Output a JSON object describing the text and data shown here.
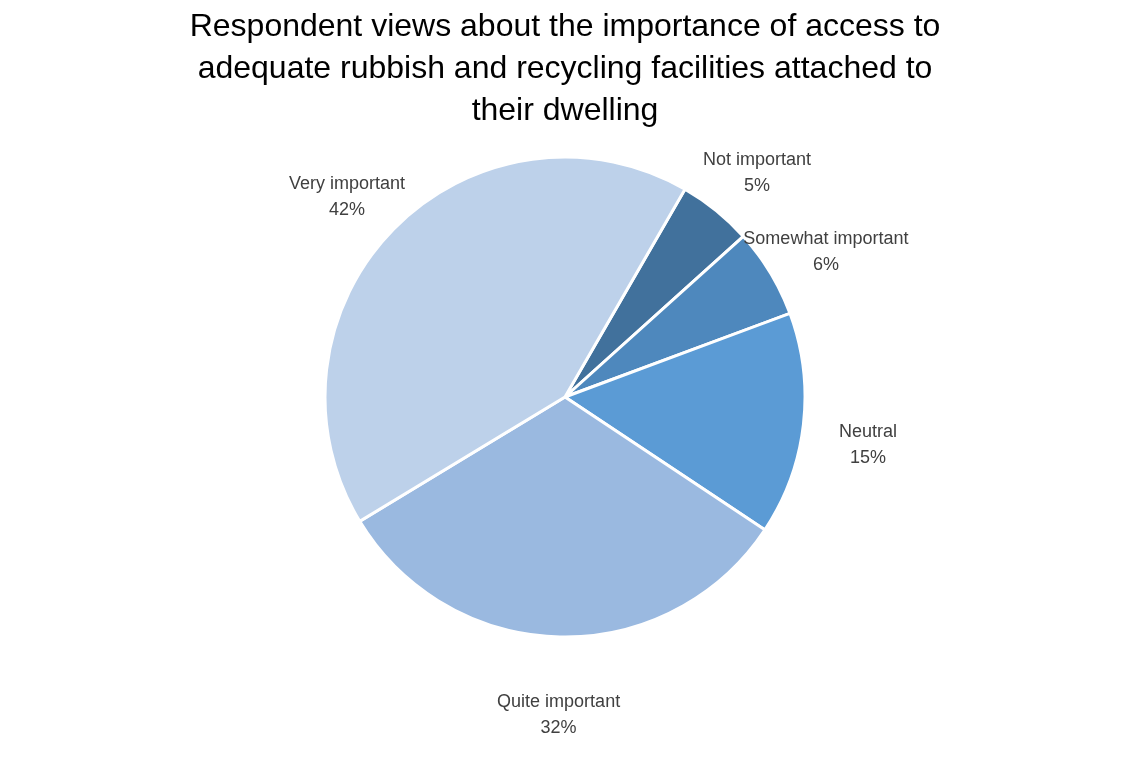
{
  "chart_data": {
    "type": "pie",
    "title": "Respondent views about the importance of access to adequate rubbish and recycling facilities attached to their dwelling",
    "categories": [
      "Not important",
      "Somewhat important",
      "Neutral",
      "Quite important",
      "Very important"
    ],
    "values": [
      5,
      6,
      15,
      32,
      42
    ],
    "value_labels": [
      "5%",
      "6%",
      "15%",
      "32%",
      "42%"
    ],
    "colors": [
      "#41719c",
      "#4e88bd",
      "#5b9bd5",
      "#9ab9e0",
      "#bdd1ea"
    ]
  }
}
